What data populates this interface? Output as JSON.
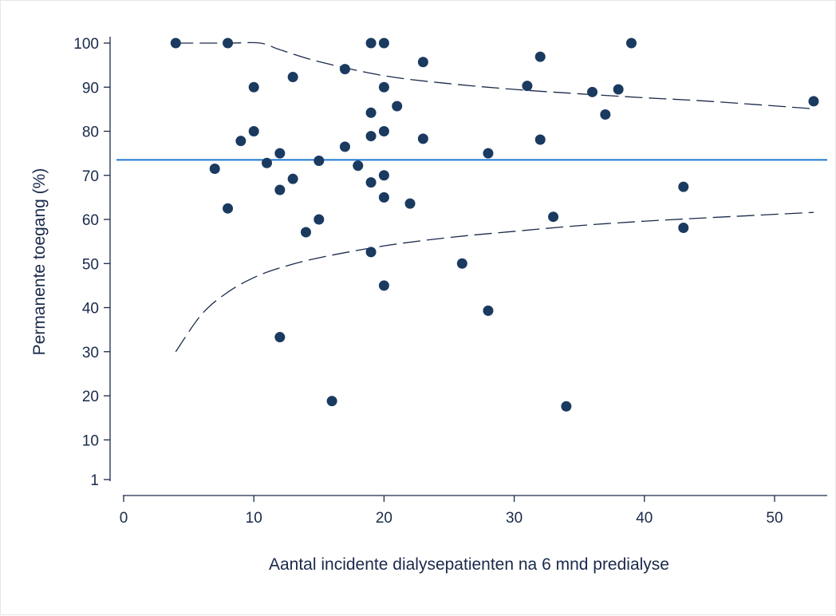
{
  "chart_data": {
    "type": "scatter",
    "title": "",
    "xlabel": "Aantal incidente dialysepatienten na 6 mnd predialyse",
    "ylabel": "Permanente toegang (%)",
    "xlim": [
      -1,
      54
    ],
    "ylim": [
      -3,
      103
    ],
    "x_ticks": [
      0,
      10,
      20,
      30,
      40,
      50
    ],
    "y_ticks": [
      1,
      10,
      20,
      30,
      40,
      50,
      60,
      70,
      80,
      90,
      100
    ],
    "grid": false,
    "legend": "none",
    "colors": {
      "points": "#1a3a60",
      "mean_line": "#1f78d1",
      "limits": "#1a2a4a",
      "axis": "#1a2a4a"
    },
    "mean_line": {
      "y": 73.5
    },
    "upper_limit": {
      "x": [
        4,
        8,
        10.5,
        12,
        15,
        20,
        25,
        30,
        35,
        40,
        45,
        53
      ],
      "y": [
        100,
        100,
        100,
        98.5,
        95.8,
        92.6,
        90.8,
        89.5,
        88.5,
        87.6,
        86.8,
        85.1
      ]
    },
    "lower_limit": {
      "x": [
        4,
        6,
        8,
        10,
        12,
        15,
        20,
        25,
        30,
        35,
        40,
        45,
        53
      ],
      "y": [
        30,
        38.5,
        43.5,
        46.8,
        49.0,
        51.3,
        54.0,
        55.9,
        57.3,
        58.6,
        59.6,
        60.4,
        61.6
      ]
    },
    "series": [
      {
        "x": [
          4,
          8,
          8,
          7,
          9,
          10,
          10,
          11,
          12,
          12,
          12,
          13,
          13,
          14,
          15,
          15,
          16,
          17,
          17,
          18,
          19,
          19,
          19,
          19,
          19,
          20,
          20,
          20,
          20,
          20,
          20,
          21,
          22,
          23,
          23,
          26,
          28,
          28,
          31,
          32,
          32,
          33,
          34,
          36,
          37,
          38,
          39,
          43,
          43,
          53
        ],
        "y": [
          100,
          100,
          62.5,
          71.5,
          77.8,
          90,
          80,
          72.8,
          75,
          66.7,
          33.3,
          92.3,
          69.2,
          57.1,
          73.3,
          60,
          18.8,
          94.1,
          76.5,
          72.2,
          100,
          84.2,
          78.9,
          68.4,
          52.6,
          100,
          90,
          80,
          70,
          65,
          45,
          85.7,
          63.6,
          95.7,
          78.3,
          50,
          75,
          39.3,
          90.3,
          96.9,
          78.1,
          60.6,
          17.6,
          88.9,
          83.8,
          89.5,
          100,
          67.4,
          58.1,
          86.8
        ]
      }
    ]
  }
}
